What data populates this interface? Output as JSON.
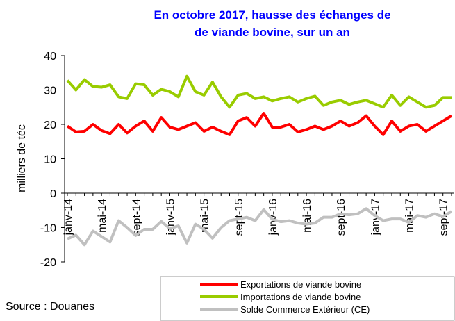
{
  "chart_data": {
    "type": "line",
    "title": [
      "En octobre 2017, hausse des échanges de",
      "de viande bovine, sur un an"
    ],
    "ylabel": "milliers de téc",
    "source": "Source : Douanes",
    "categories": [
      "janv-14",
      null,
      null,
      null,
      "mai-14",
      null,
      null,
      null,
      "sept-14",
      null,
      null,
      null,
      "janv-15",
      null,
      null,
      null,
      "mai-15",
      null,
      null,
      null,
      "sept-15",
      null,
      null,
      null,
      "janv-16",
      null,
      null,
      null,
      "mai-16",
      null,
      null,
      null,
      "sept-16",
      null,
      null,
      null,
      "janv-17",
      null,
      null,
      null,
      "mai-17",
      null,
      null,
      null,
      "sept-17",
      null
    ],
    "series": [
      {
        "name": "Exportations de viande bovine",
        "color": "#ff0000",
        "values": [
          19.5,
          17.8,
          18,
          20,
          18.2,
          17.3,
          20,
          17.5,
          19.5,
          21,
          18,
          22,
          19.2,
          18.5,
          19.5,
          20.5,
          18,
          19.2,
          18,
          17,
          21,
          22,
          19.5,
          23.2,
          19.2,
          19.2,
          20,
          17.8,
          18.5,
          19.5,
          18.5,
          19.5,
          21,
          19.5,
          20.5,
          22.5,
          19.5,
          17,
          21,
          18,
          19.5,
          20,
          18,
          19.5,
          21,
          22.5
        ]
      },
      {
        "name": "Importations de viande bovine",
        "color": "#99cc00",
        "values": [
          32.8,
          30,
          33,
          31,
          30.8,
          31.5,
          28,
          27.5,
          31.8,
          31.5,
          28.5,
          30.2,
          29.5,
          28,
          34,
          29.5,
          28.5,
          32.3,
          28,
          25,
          28.5,
          29,
          27.5,
          28,
          26.8,
          27.5,
          28,
          26.5,
          27.5,
          28.2,
          25.5,
          26.5,
          27,
          25.8,
          26.5,
          27,
          26,
          25,
          28.5,
          25.5,
          28,
          26.5,
          25,
          25.5,
          27.8,
          27.8
        ]
      },
      {
        "name": "Solde Commerce Extérieur (CE)",
        "color": "#c0c0c0",
        "values": [
          -13.3,
          -12.2,
          -15,
          -11,
          -12.6,
          -14.2,
          -8,
          -10,
          -12.3,
          -10.5,
          -10.5,
          -8.2,
          -10.3,
          -9.5,
          -14.5,
          -9,
          -10.5,
          -13.1,
          -10,
          -8,
          -7.5,
          -7,
          -8,
          -4.8,
          -7.6,
          -8.3,
          -8,
          -8.7,
          -9,
          -8.7,
          -7,
          -7,
          -6,
          -6.3,
          -6,
          -4.5,
          -6.5,
          -8,
          -7.5,
          -7.5,
          -8.5,
          -6.5,
          -7,
          -6,
          -6.8,
          -5.3
        ]
      }
    ],
    "ylim": [
      -20,
      40
    ],
    "yticks": [
      -20,
      -10,
      0,
      10,
      20,
      30,
      40
    ]
  }
}
